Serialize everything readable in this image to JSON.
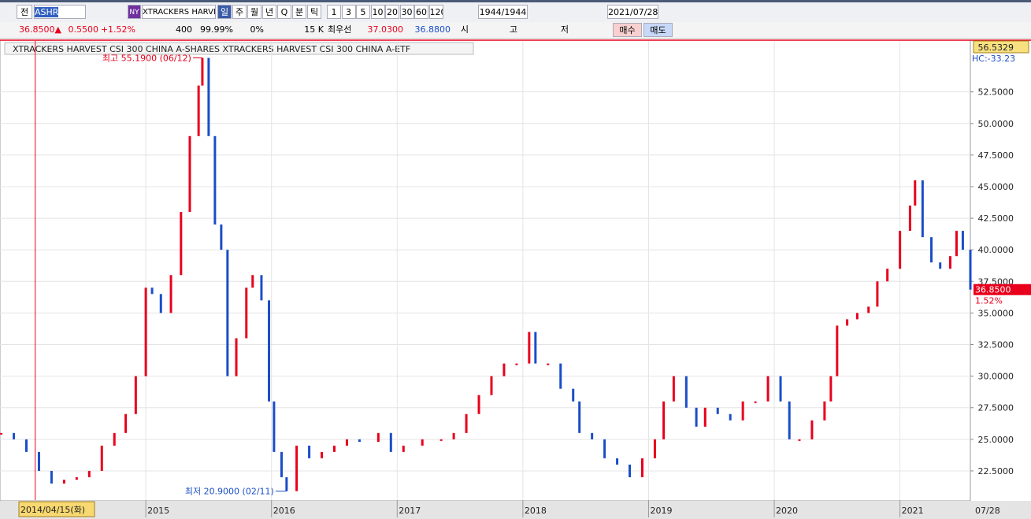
{
  "toolbar": {
    "market": "전",
    "symbol": "ASHR",
    "exchange": "NY",
    "name": "XTRACKERS HARVES",
    "periods": [
      "일",
      "주",
      "월",
      "년",
      "Q",
      "분",
      "틱"
    ],
    "intervals": [
      "1",
      "3",
      "5",
      "10",
      "20",
      "30",
      "60",
      "120"
    ],
    "count": "1944/1944",
    "date": "2021/07/28"
  },
  "quote": {
    "price": "36.8500▲",
    "change": "0.5500",
    "change_pct": "+1.52%",
    "volume": "400",
    "ratio": "99.99%",
    "rate": "0%",
    "amount": "15 K",
    "best_label": "최우선",
    "ask": "37.0300",
    "bid": "36.8800",
    "open_label": "시",
    "high_label": "고",
    "low_label": "저",
    "buy": "매수",
    "sell": "매도"
  },
  "chart_data": {
    "type": "candle",
    "legend": "XTRACKERS HARVEST CSI 300 CHINA A-SHARES  XTRACKERS HARVEST CSI 300 CHINA A-ETF",
    "x": [
      2013.85,
      2013.95,
      2014.05,
      2014.15,
      2014.25,
      2014.35,
      2014.45,
      2014.55,
      2014.65,
      2014.75,
      2014.84,
      2014.92,
      2015.0,
      2015.05,
      2015.12,
      2015.2,
      2015.28,
      2015.35,
      2015.42,
      2015.45,
      2015.5,
      2015.55,
      2015.6,
      2015.65,
      2015.72,
      2015.8,
      2015.85,
      2015.92,
      2015.98,
      2016.02,
      2016.08,
      2016.12,
      2016.2,
      2016.3,
      2016.4,
      2016.5,
      2016.6,
      2016.7,
      2016.85,
      2016.95,
      2017.05,
      2017.2,
      2017.35,
      2017.45,
      2017.55,
      2017.65,
      2017.75,
      2017.85,
      2017.95,
      2018.05,
      2018.1,
      2018.2,
      2018.3,
      2018.4,
      2018.45,
      2018.55,
      2018.65,
      2018.75,
      2018.85,
      2018.95,
      2019.05,
      2019.12,
      2019.2,
      2019.3,
      2019.38,
      2019.45,
      2019.55,
      2019.65,
      2019.75,
      2019.85,
      2019.95,
      2020.05,
      2020.12,
      2020.2,
      2020.3,
      2020.4,
      2020.45,
      2020.5,
      2020.58,
      2020.66,
      2020.75,
      2020.82,
      2020.9,
      2021.0,
      2021.08,
      2021.12,
      2021.18,
      2021.25,
      2021.32,
      2021.4,
      2021.45,
      2021.5,
      2021.56
    ],
    "values": [
      25.5,
      25,
      24,
      22.5,
      21.5,
      21.8,
      22,
      22.5,
      24.5,
      25.5,
      27,
      30,
      37,
      36.5,
      35,
      38,
      43,
      49,
      53,
      55.19,
      49,
      42,
      40,
      30,
      33,
      37,
      38,
      36,
      28,
      24,
      22,
      20.9,
      24.5,
      23.5,
      24,
      24.5,
      25,
      24.8,
      25.5,
      24,
      24.5,
      25,
      25,
      25.5,
      27,
      28.5,
      30,
      31,
      31,
      33.5,
      31,
      31,
      29,
      28,
      25.5,
      25,
      23.5,
      23,
      22,
      23.5,
      25,
      28,
      30,
      27.5,
      26,
      27.5,
      27,
      26.5,
      28,
      28,
      30,
      28,
      25,
      25,
      26.5,
      28,
      30,
      34,
      34.5,
      35,
      35.5,
      37.5,
      38.5,
      41.5,
      43.5,
      45.5,
      41,
      39,
      38.5,
      39.5,
      41.5,
      40,
      36.85
    ],
    "up_color": "#e8001c",
    "down_color": "#1a4ec8",
    "xlim": [
      2013.84,
      2021.56
    ],
    "ylim": [
      20.19,
      56.53
    ],
    "xticks": [
      {
        "value": 2015,
        "label": "2015"
      },
      {
        "value": 2016,
        "label": "2016"
      },
      {
        "value": 2017,
        "label": "2017"
      },
      {
        "value": 2018,
        "label": "2018"
      },
      {
        "value": 2019,
        "label": "2019"
      },
      {
        "value": 2020,
        "label": "2020"
      },
      {
        "value": 2021,
        "label": "2021"
      }
    ],
    "end_label": "07/28",
    "yticks": [
      {
        "value": 22.5,
        "label": "22.5000"
      },
      {
        "value": 25,
        "label": "25.0000"
      },
      {
        "value": 27.5,
        "label": "27.5000"
      },
      {
        "value": 30,
        "label": "30.0000"
      },
      {
        "value": 32.5,
        "label": "32.5000"
      },
      {
        "value": 35,
        "label": "35.0000"
      },
      {
        "value": 37.5,
        "label": "37.5000"
      },
      {
        "value": 40,
        "label": "40.0000"
      },
      {
        "value": 42.5,
        "label": "42.5000"
      },
      {
        "value": 45,
        "label": "45.0000"
      },
      {
        "value": 47.5,
        "label": "47.5000"
      },
      {
        "value": 50,
        "label": "50.0000"
      },
      {
        "value": 52.5,
        "label": "52.5000"
      }
    ],
    "grid": true,
    "top_label": "56.5329",
    "hc_label": "HC:-33.23",
    "last_label": "36.8500",
    "change_label": "1.52%",
    "high_note": "최고 55.1900 (06/12)",
    "low_note": "최저 20.9000 (02/11)",
    "cursor": {
      "x": 2014.12,
      "label": "2014/04/15(화)"
    }
  }
}
